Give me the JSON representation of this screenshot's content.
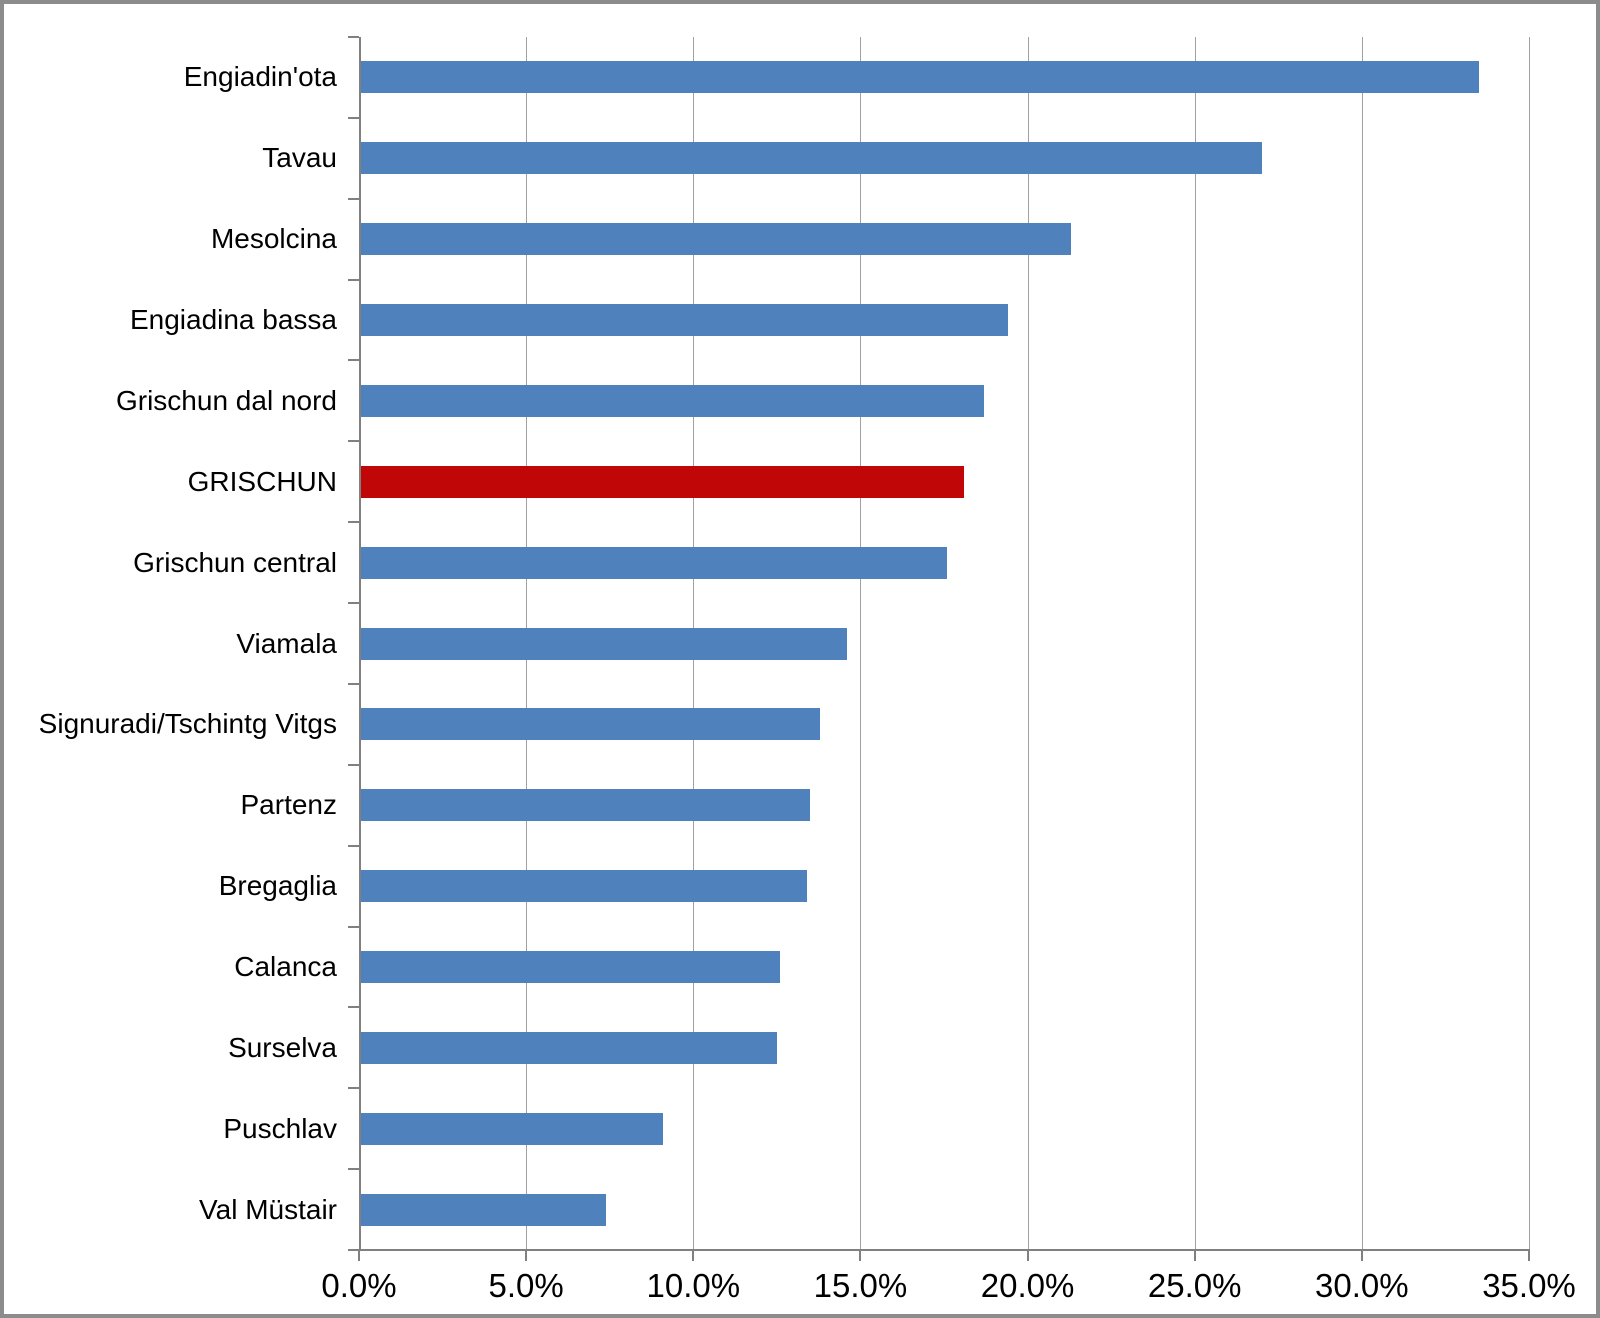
{
  "chart_data": {
    "type": "bar",
    "orientation": "horizontal",
    "categories": [
      "Engiadin'ota",
      "Tavau",
      "Mesolcina",
      "Engiadina bassa",
      "Grischun dal nord",
      "GRISCHUN",
      "Grischun central",
      "Viamala",
      "Signuradi/Tschintg Vitgs",
      "Partenz",
      "Bregaglia",
      "Calanca",
      "Surselva",
      "Puschlav",
      "Val Müstair"
    ],
    "values": [
      33.5,
      27.0,
      21.3,
      19.4,
      18.7,
      18.1,
      17.6,
      14.6,
      13.8,
      13.5,
      13.4,
      12.6,
      12.5,
      9.1,
      7.4
    ],
    "value_unit": "%",
    "highlight_category": "GRISCHUN",
    "highlight_index": 5,
    "bar_color": "#4F81BD",
    "highlight_color": "#C00606",
    "axis_color": "#808080",
    "gridline_color": "#A0A0A0",
    "xlim": [
      0,
      35
    ],
    "x_tick_interval": 5,
    "x_tick_labels": [
      "0.0%",
      "5.0%",
      "10.0%",
      "15.0%",
      "20.0%",
      "25.0%",
      "30.0%",
      "35.0%"
    ],
    "grid": true,
    "legend": false
  }
}
